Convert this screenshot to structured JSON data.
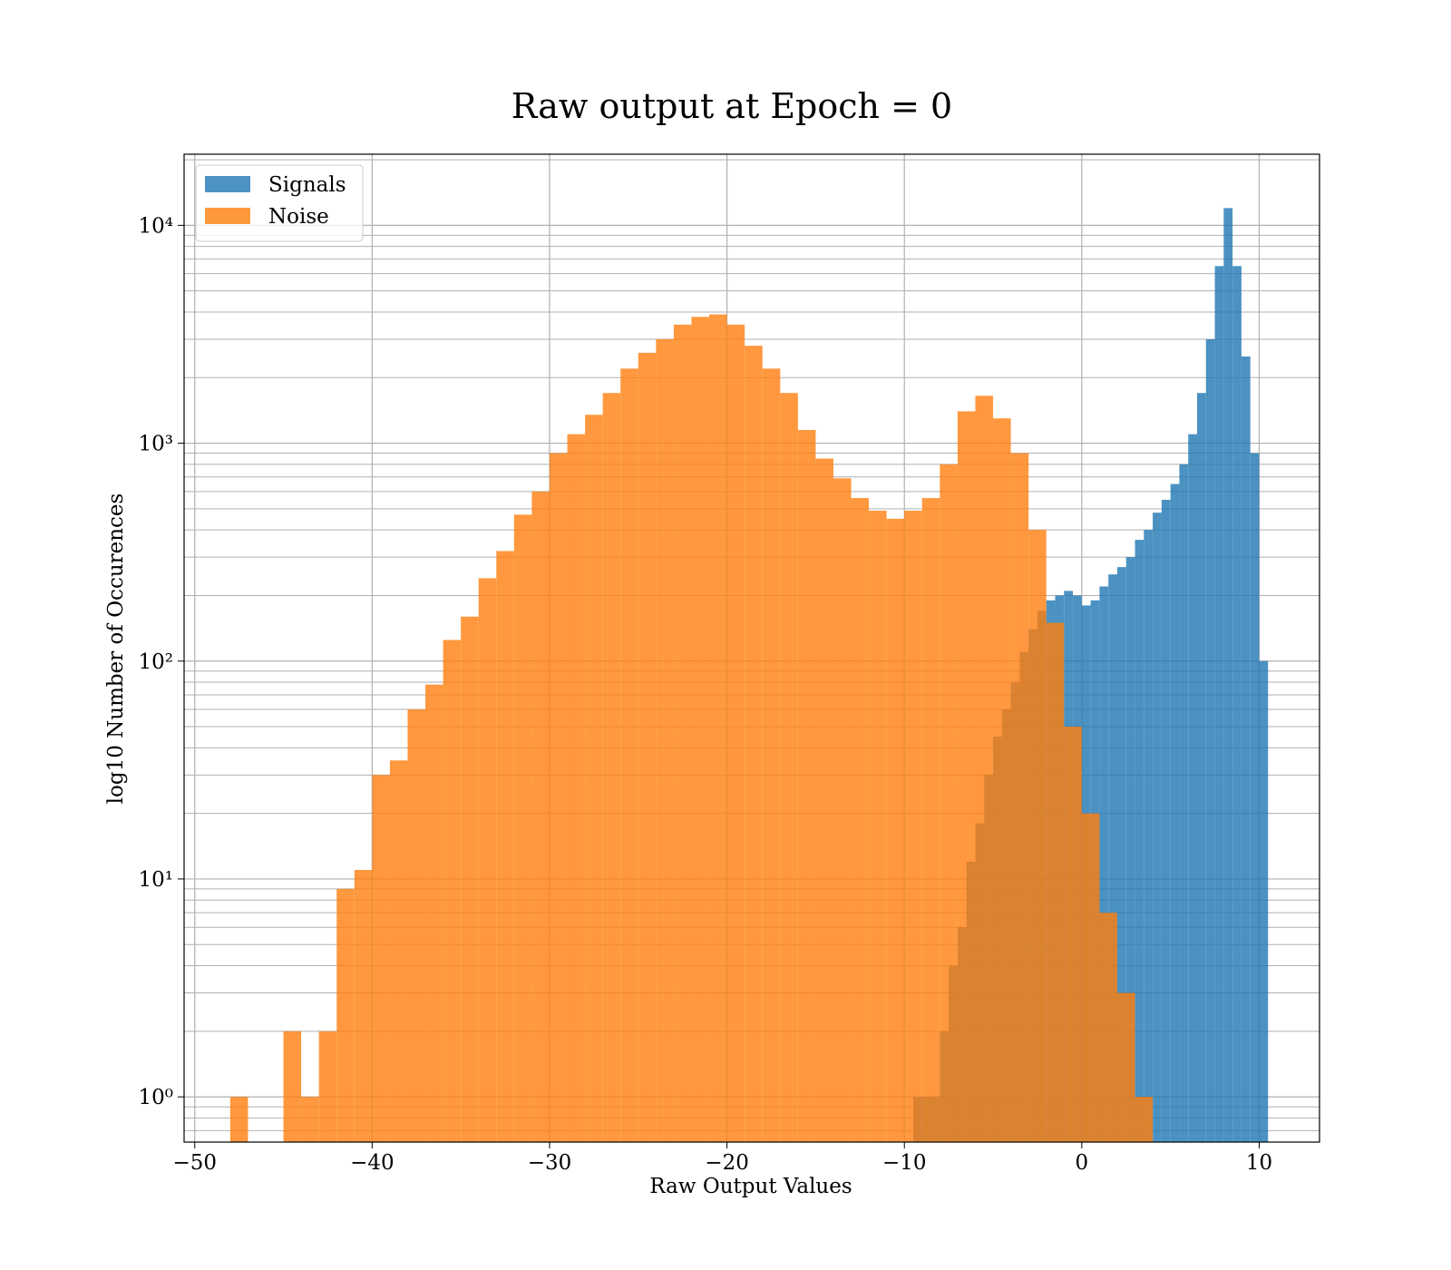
{
  "chart_data": {
    "type": "histogram",
    "title": "Raw output at Epoch = 0",
    "x_label": "Raw Output Values",
    "y_label": "log10 Number of Occurences",
    "log_y": true,
    "grid": true,
    "minor_grid": true,
    "legend": "upper left",
    "opacity": 0.8,
    "xlim": [
      -50.6,
      13.4
    ],
    "ylim": [
      0.62,
      21200
    ],
    "xticks": [
      {
        "value": -50,
        "label": "−50"
      },
      {
        "value": -40,
        "label": "−40"
      },
      {
        "value": -30,
        "label": "−30"
      },
      {
        "value": -20,
        "label": "−20"
      },
      {
        "value": -10,
        "label": "−10"
      },
      0,
      10
    ],
    "yticks": [
      {
        "value": 1,
        "label": "10⁰"
      },
      {
        "value": 10,
        "label": "10¹"
      },
      {
        "value": 100,
        "label": "10²"
      },
      {
        "value": 1000,
        "label": "10³"
      },
      {
        "value": 10000,
        "label": "10⁴"
      }
    ],
    "series": [
      {
        "name": "Signals",
        "color": "#1f77b4",
        "bins": [
          -9.5,
          -9,
          -8.5,
          -8,
          -7.5,
          -7,
          -6.5,
          -6,
          -5.5,
          -5,
          -4.5,
          -4,
          -3.5,
          -3,
          -2.5,
          -2,
          -1.5,
          -1,
          -0.5,
          0,
          0.5,
          1,
          1.5,
          2,
          2.5,
          3,
          3.5,
          4,
          4.5,
          5,
          5.5,
          6,
          6.5,
          7,
          7.5,
          8,
          8.5,
          9,
          9.5,
          10,
          10.5
        ],
        "values": [
          1,
          1,
          1,
          2,
          4,
          6,
          12,
          18,
          30,
          45,
          60,
          80,
          110,
          140,
          170,
          190,
          200,
          210,
          200,
          180,
          190,
          220,
          250,
          270,
          300,
          360,
          400,
          480,
          550,
          650,
          800,
          1100,
          1700,
          3000,
          6500,
          12000,
          6500,
          2500,
          900,
          100
        ]
      },
      {
        "name": "Noise",
        "color": "#ff7f0e",
        "bins": [
          -48,
          -47,
          -46,
          -45,
          -44,
          -43,
          -42,
          -41,
          -40,
          -39,
          -38,
          -37,
          -36,
          -35,
          -34,
          -33,
          -32,
          -31,
          -30,
          -29,
          -28,
          -27,
          -26,
          -25,
          -24,
          -23,
          -22,
          -21,
          -20,
          -19,
          -18,
          -17,
          -16,
          -15,
          -14,
          -13,
          -12,
          -11,
          -10,
          -9,
          -8,
          -7,
          -6,
          -5,
          -4,
          -3,
          -2,
          -1,
          0,
          1,
          2,
          3,
          4
        ],
        "values": [
          1,
          0,
          0,
          2,
          1,
          2,
          9,
          11,
          30,
          35,
          60,
          78,
          125,
          160,
          240,
          320,
          470,
          600,
          900,
          1100,
          1350,
          1700,
          2200,
          2600,
          3000,
          3500,
          3800,
          3900,
          3500,
          2800,
          2200,
          1700,
          1150,
          850,
          690,
          560,
          490,
          450,
          490,
          560,
          800,
          1400,
          1650,
          1300,
          900,
          400,
          150,
          50,
          20,
          7,
          3,
          1
        ]
      }
    ]
  }
}
